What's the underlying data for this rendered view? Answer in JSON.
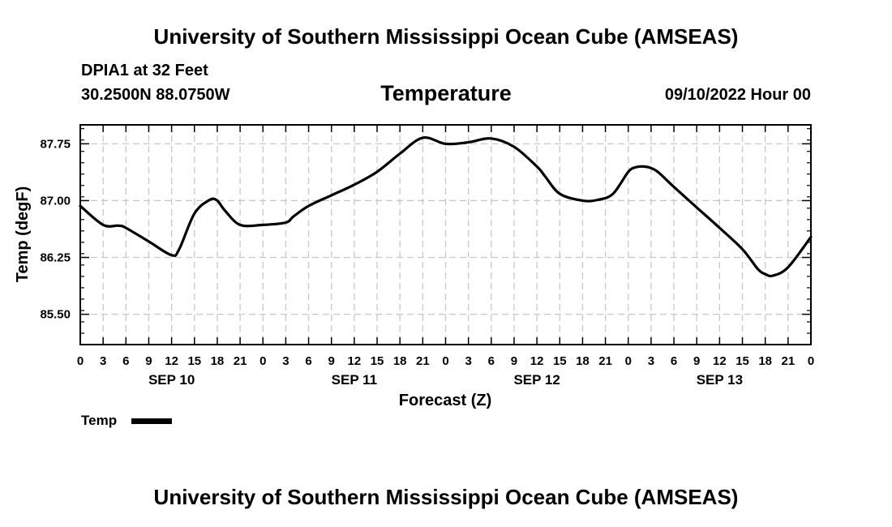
{
  "header": {
    "title": "University of Southern Mississippi Ocean Cube (AMSEAS)",
    "station": "DPIA1 at 32 Feet",
    "coords": "30.2500N  88.0750W",
    "plot_title": "Temperature",
    "datetime": "09/10/2022 Hour 00"
  },
  "footer": {
    "title": "University of Southern Mississippi Ocean Cube (AMSEAS)"
  },
  "legend": {
    "label": "Temp"
  },
  "chart_data": {
    "type": "line",
    "title": "Temperature",
    "xlabel": "Forecast (Z)",
    "ylabel": "Temp (degF)",
    "xlim": [
      0,
      96
    ],
    "ylim": [
      85.1,
      88.0
    ],
    "xticks": [
      0,
      3,
      6,
      9,
      12,
      15,
      18,
      21,
      24,
      27,
      30,
      33,
      36,
      39,
      42,
      45,
      48,
      51,
      54,
      57,
      60,
      63,
      66,
      69,
      72,
      75,
      78,
      81,
      84,
      87,
      90,
      93,
      96
    ],
    "xtick_labels": [
      "0",
      "3",
      "6",
      "9",
      "12",
      "15",
      "18",
      "21",
      "0",
      "3",
      "6",
      "9",
      "12",
      "15",
      "18",
      "21",
      "0",
      "3",
      "6",
      "9",
      "12",
      "15",
      "18",
      "21",
      "0",
      "3",
      "6",
      "9",
      "12",
      "15",
      "18",
      "21",
      "0"
    ],
    "yticks": [
      85.5,
      86.25,
      87.0,
      87.75
    ],
    "ytick_labels": [
      "85.50",
      "86.25",
      "87.00",
      "87.75"
    ],
    "day_labels": [
      {
        "hour": 12,
        "label": "SEP 10"
      },
      {
        "hour": 36,
        "label": "SEP 11"
      },
      {
        "hour": 60,
        "label": "SEP 12"
      },
      {
        "hour": 84,
        "label": "SEP 13"
      }
    ],
    "grid": true,
    "legend_position": "bottom-left",
    "series": [
      {
        "name": "Temp",
        "x": [
          0,
          3,
          5,
          6,
          9,
          12,
          13,
          15,
          17,
          18,
          19,
          21,
          24,
          27,
          28,
          30,
          33,
          36,
          39,
          42,
          45,
          48,
          51,
          54,
          57,
          60,
          61,
          63,
          66,
          68,
          70,
          72,
          73,
          74,
          75,
          76,
          78,
          81,
          84,
          87,
          89,
          90,
          91,
          93,
          96
        ],
        "y": [
          86.93,
          86.68,
          86.67,
          86.64,
          86.46,
          86.28,
          86.36,
          86.83,
          87.01,
          87.0,
          86.87,
          86.68,
          86.68,
          86.71,
          86.79,
          86.93,
          87.07,
          87.21,
          87.38,
          87.62,
          87.83,
          87.75,
          87.77,
          87.82,
          87.71,
          87.45,
          87.33,
          87.09,
          87.0,
          87.01,
          87.09,
          87.38,
          87.44,
          87.45,
          87.43,
          87.37,
          87.18,
          86.91,
          86.64,
          86.36,
          86.1,
          86.03,
          86.01,
          86.12,
          86.52
        ]
      }
    ]
  }
}
